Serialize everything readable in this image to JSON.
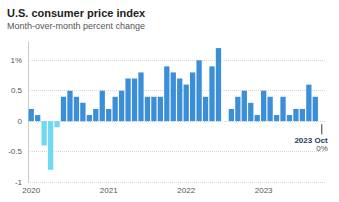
{
  "chart_data": {
    "type": "bar",
    "title": "U.S. consumer price index",
    "subtitle": "Month-over-month percent change",
    "categories": [
      "2020",
      null,
      null,
      null,
      null,
      null,
      null,
      null,
      null,
      null,
      null,
      null,
      "2021",
      null,
      null,
      null,
      null,
      null,
      null,
      null,
      null,
      null,
      null,
      null,
      "2022",
      null,
      null,
      null,
      null,
      null,
      null,
      null,
      null,
      null,
      null,
      null,
      "2023",
      null,
      null,
      null,
      null,
      null,
      null,
      null,
      null,
      null
    ],
    "values": [
      0.2,
      0.1,
      -0.4,
      -0.8,
      -0.1,
      0.4,
      0.5,
      0.4,
      0.3,
      0.1,
      0.2,
      0.5,
      0.2,
      0.4,
      0.5,
      0.7,
      0.7,
      0.8,
      0.4,
      0.4,
      0.4,
      0.9,
      0.8,
      0.7,
      0.6,
      0.8,
      1.0,
      0.4,
      0.9,
      1.2,
      0.0,
      0.2,
      0.4,
      0.5,
      0.3,
      0.1,
      0.5,
      0.4,
      0.1,
      0.4,
      0.1,
      0.2,
      0.2,
      0.6,
      0.4,
      0.0
    ],
    "colors": [
      "#3b8fd9",
      "#3b8fd9",
      "#6fd8f2",
      "#6fd8f2",
      "#6fd8f2",
      "#3b8fd9",
      "#3b8fd9",
      "#3b8fd9",
      "#3b8fd9",
      "#3b8fd9",
      "#3b8fd9",
      "#3b8fd9",
      "#3b8fd9",
      "#3b8fd9",
      "#3b8fd9",
      "#3b8fd9",
      "#3b8fd9",
      "#3b8fd9",
      "#3b8fd9",
      "#3b8fd9",
      "#3b8fd9",
      "#3b8fd9",
      "#3b8fd9",
      "#3b8fd9",
      "#3b8fd9",
      "#3b8fd9",
      "#3b8fd9",
      "#3b8fd9",
      "#3b8fd9",
      "#3b8fd9",
      "#3b8fd9",
      "#3b8fd9",
      "#3b8fd9",
      "#3b8fd9",
      "#3b8fd9",
      "#3b8fd9",
      "#3b8fd9",
      "#3b8fd9",
      "#3b8fd9",
      "#3b8fd9",
      "#3b8fd9",
      "#3b8fd9",
      "#3b8fd9",
      "#3b8fd9",
      "#3b8fd9",
      "#3b8fd9"
    ],
    "ylim": [
      -1,
      1.3
    ],
    "yticks": [
      -1,
      -0.5,
      0,
      0.5,
      {
        "value": 1,
        "label": "1%"
      }
    ],
    "grid": true,
    "annotation": {
      "index": 45,
      "text": "2023 Oct",
      "value": 0,
      "value_label": "0%"
    }
  }
}
